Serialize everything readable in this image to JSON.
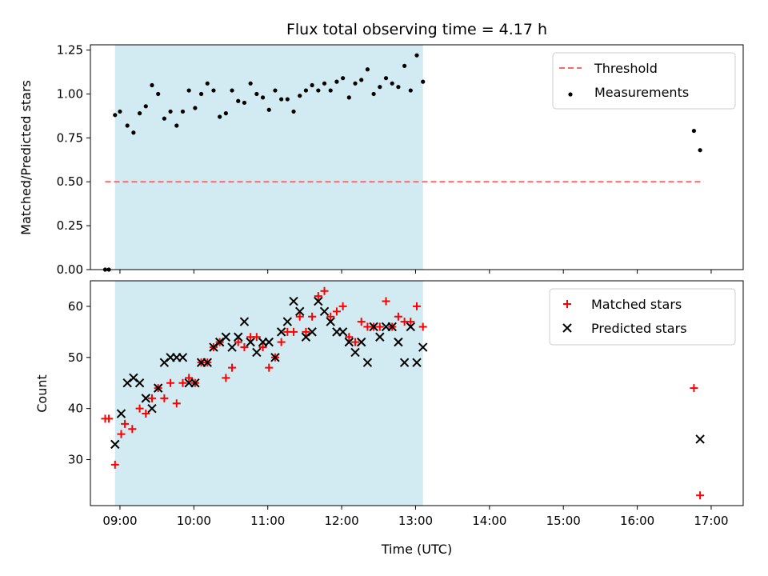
{
  "chart_data": {
    "title": "Flux total observing time = 4.17 h",
    "xlabel": "Time (UTC)",
    "x_ticks": [
      "09:00",
      "10:00",
      "11:00",
      "12:00",
      "13:00",
      "14:00",
      "15:00",
      "16:00",
      "17:00"
    ],
    "xlim": [
      "08:36",
      "17:26"
    ],
    "span": {
      "start": "08:56",
      "end": "13:06",
      "color": "#add8e6"
    },
    "panels": [
      {
        "type": "scatter",
        "ylabel": "Matched/Predicted stars",
        "ylim": [
          0,
          1.28
        ],
        "y_ticks": [
          "0.00",
          "0.25",
          "0.50",
          "0.75",
          "1.00",
          "1.25"
        ],
        "legend": {
          "placement": "upper right",
          "entries": [
            "Threshold",
            "Measurements"
          ]
        },
        "series": [
          {
            "name": "Threshold",
            "kind": "dashed-line",
            "color": "#ff6666",
            "x": [
              "08:48",
              "16:54"
            ],
            "y": [
              0.5,
              0.5
            ]
          },
          {
            "name": "Measurements",
            "kind": "dot",
            "color": "#000000",
            "x": [
              "08:48",
              "08:51",
              "08:56",
              "09:00",
              "09:06",
              "09:11",
              "09:16",
              "09:21",
              "09:26",
              "09:31",
              "09:36",
              "09:41",
              "09:46",
              "09:51",
              "09:56",
              "10:01",
              "10:06",
              "10:11",
              "10:16",
              "10:21",
              "10:26",
              "10:31",
              "10:36",
              "10:41",
              "10:46",
              "10:51",
              "10:56",
              "11:01",
              "11:06",
              "11:11",
              "11:16",
              "11:21",
              "11:26",
              "11:31",
              "11:36",
              "11:41",
              "11:46",
              "11:51",
              "11:56",
              "12:01",
              "12:06",
              "12:11",
              "12:16",
              "12:21",
              "12:26",
              "12:31",
              "12:36",
              "12:41",
              "12:46",
              "12:51",
              "12:56",
              "13:01",
              "13:06",
              "16:46",
              "16:51"
            ],
            "y": [
              0.0,
              0.0,
              0.88,
              0.9,
              0.82,
              0.78,
              0.89,
              0.93,
              1.05,
              1.0,
              0.86,
              0.9,
              0.82,
              0.9,
              1.02,
              0.92,
              1.0,
              1.06,
              1.02,
              0.87,
              0.89,
              1.02,
              0.96,
              0.95,
              1.06,
              1.0,
              0.98,
              0.91,
              1.02,
              0.97,
              0.97,
              0.9,
              0.99,
              1.02,
              1.05,
              1.02,
              1.06,
              1.02,
              1.07,
              1.09,
              0.98,
              1.06,
              1.08,
              1.14,
              1.0,
              1.04,
              1.09,
              1.06,
              1.04,
              1.16,
              1.02,
              1.22,
              1.07,
              0.79,
              0.68
            ]
          }
        ]
      },
      {
        "type": "scatter",
        "ylabel": "Count",
        "ylim": [
          21,
          65
        ],
        "y_ticks": [
          "30",
          "40",
          "50",
          "60"
        ],
        "legend": {
          "placement": "upper right",
          "entries": [
            "Matched stars",
            "Predicted stars"
          ]
        },
        "series": [
          {
            "name": "Matched stars",
            "kind": "plus",
            "color": "#ff0000",
            "x": [
              "08:48",
              "08:51",
              "08:56",
              "09:01",
              "09:04",
              "09:10",
              "09:16",
              "09:21",
              "09:26",
              "09:31",
              "09:36",
              "09:41",
              "09:46",
              "09:51",
              "09:56",
              "10:01",
              "10:06",
              "10:11",
              "10:16",
              "10:21",
              "10:26",
              "10:31",
              "10:36",
              "10:41",
              "10:46",
              "10:51",
              "10:56",
              "11:01",
              "11:06",
              "11:11",
              "11:16",
              "11:21",
              "11:26",
              "11:31",
              "11:36",
              "11:41",
              "11:46",
              "11:51",
              "11:56",
              "12:01",
              "12:06",
              "12:11",
              "12:16",
              "12:21",
              "12:26",
              "12:31",
              "12:36",
              "12:41",
              "12:46",
              "12:51",
              "12:56",
              "13:01",
              "13:06",
              "16:46",
              "16:51"
            ],
            "y": [
              38,
              38,
              29,
              35,
              37,
              36,
              40,
              39,
              42,
              44,
              42,
              45,
              41,
              45,
              46,
              45,
              49,
              49,
              52,
              53,
              46,
              48,
              53,
              52,
              54,
              54,
              52,
              48,
              50,
              53,
              55,
              55,
              58,
              55,
              58,
              62,
              63,
              58,
              59,
              60,
              54,
              53,
              57,
              56,
              56,
              56,
              61,
              56,
              58,
              57,
              57,
              60,
              56,
              44,
              23
            ]
          },
          {
            "name": "Predicted stars",
            "kind": "x",
            "color": "#000000",
            "x": [
              "08:56",
              "09:01",
              "09:06",
              "09:11",
              "09:16",
              "09:21",
              "09:26",
              "09:31",
              "09:36",
              "09:41",
              "09:46",
              "09:51",
              "09:56",
              "10:01",
              "10:06",
              "10:11",
              "10:16",
              "10:21",
              "10:26",
              "10:31",
              "10:36",
              "10:41",
              "10:46",
              "10:51",
              "10:56",
              "11:01",
              "11:06",
              "11:11",
              "11:16",
              "11:21",
              "11:26",
              "11:31",
              "11:36",
              "11:41",
              "11:46",
              "11:51",
              "11:56",
              "12:01",
              "12:06",
              "12:11",
              "12:16",
              "12:21",
              "12:26",
              "12:31",
              "12:36",
              "12:41",
              "12:46",
              "12:51",
              "12:56",
              "13:01",
              "13:06",
              "16:51"
            ],
            "y": [
              33,
              39,
              45,
              46,
              45,
              42,
              40,
              44,
              49,
              50,
              50,
              50,
              45,
              45,
              49,
              49,
              52,
              53,
              54,
              52,
              54,
              57,
              53,
              51,
              53,
              53,
              50,
              55,
              57,
              61,
              59,
              54,
              55,
              61,
              59,
              57,
              55,
              55,
              53,
              51,
              53,
              49,
              56,
              54,
              56,
              56,
              53,
              49,
              56,
              49,
              52,
              34
            ]
          }
        ]
      }
    ]
  }
}
